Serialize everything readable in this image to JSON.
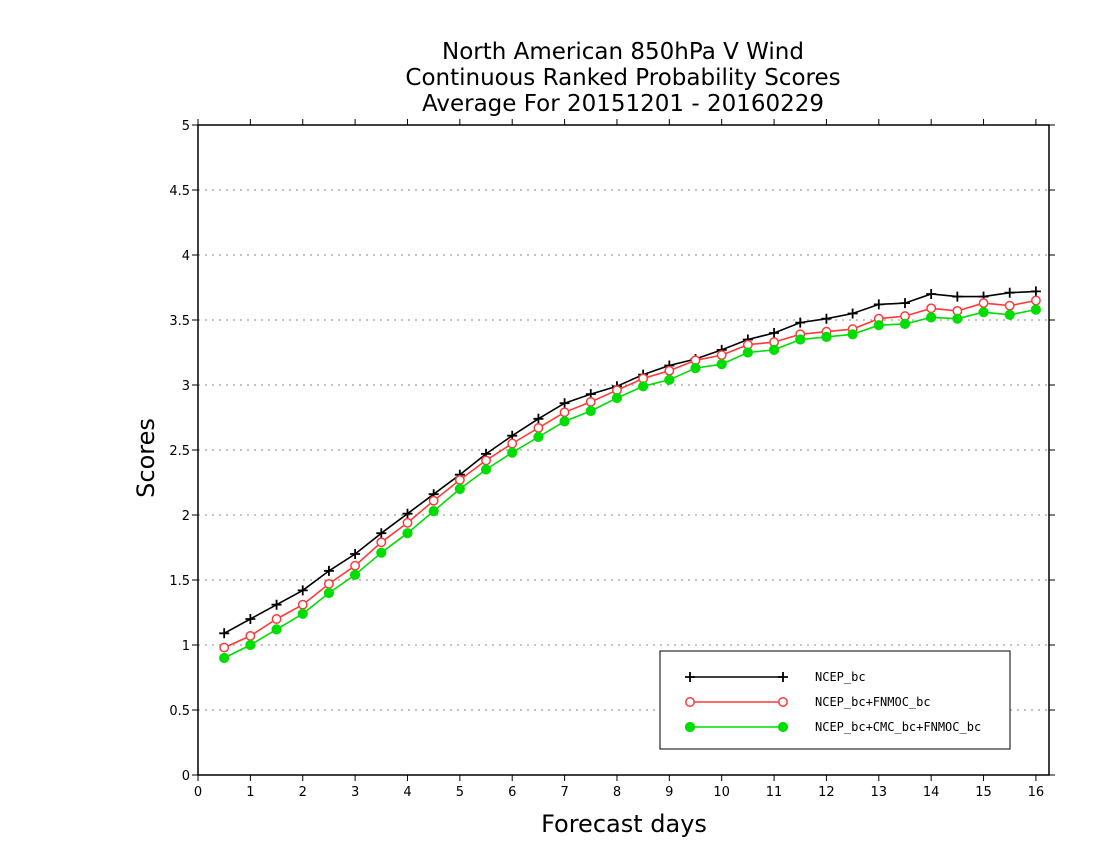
{
  "chart_data": {
    "type": "line",
    "title": [
      "North American 850hPa V Wind",
      "Continuous Ranked Probability Scores",
      "Average For 20151201 - 20160229"
    ],
    "xlabel": "Forecast days",
    "ylabel": "Scores",
    "xlim": [
      0,
      16.25
    ],
    "ylim": [
      0,
      5
    ],
    "x_ticks": [
      0,
      1,
      2,
      3,
      4,
      5,
      6,
      7,
      8,
      9,
      10,
      11,
      12,
      13,
      14,
      15,
      16
    ],
    "x_tick_labels": [
      "0",
      "1",
      "2",
      "3",
      "4",
      "5",
      "6",
      "7",
      "8",
      "9",
      "10",
      "11",
      "12",
      "13",
      "14",
      "15",
      "16"
    ],
    "y_ticks": [
      0,
      0.5,
      1,
      1.5,
      2,
      2.5,
      3,
      3.5,
      4,
      4.5,
      5
    ],
    "y_tick_labels": [
      "0",
      "0.5",
      "1",
      "1.5",
      "2",
      "2.5",
      "3",
      "3.5",
      "4",
      "4.5",
      "5"
    ],
    "grid": "horizontal dotted",
    "legend_position": "bottom-right",
    "x": [
      0.5,
      1,
      1.5,
      2,
      2.5,
      3,
      3.5,
      4,
      4.5,
      5,
      5.5,
      6,
      6.5,
      7,
      7.5,
      8,
      8.5,
      9,
      9.5,
      10,
      10.5,
      11,
      11.5,
      12,
      12.5,
      13,
      13.5,
      14,
      14.5,
      15,
      15.5,
      16
    ],
    "series": [
      {
        "name": "NCEP_bc",
        "color": "#000000",
        "marker": "plus",
        "values": [
          1.09,
          1.2,
          1.31,
          1.42,
          1.57,
          1.7,
          1.86,
          2.01,
          2.16,
          2.31,
          2.47,
          2.61,
          2.74,
          2.86,
          2.93,
          2.99,
          3.08,
          3.15,
          3.2,
          3.27,
          3.35,
          3.4,
          3.48,
          3.51,
          3.55,
          3.62,
          3.63,
          3.7,
          3.68,
          3.68,
          3.71,
          3.72
        ]
      },
      {
        "name": "NCEP_bc+FNMOC_bc",
        "color": "#ff3a3a",
        "marker": "open-circle",
        "values": [
          0.98,
          1.07,
          1.2,
          1.31,
          1.47,
          1.61,
          1.79,
          1.94,
          2.11,
          2.27,
          2.42,
          2.55,
          2.67,
          2.79,
          2.87,
          2.96,
          3.05,
          3.11,
          3.19,
          3.23,
          3.31,
          3.33,
          3.39,
          3.41,
          3.43,
          3.51,
          3.53,
          3.59,
          3.57,
          3.63,
          3.61,
          3.65
        ]
      },
      {
        "name": "NCEP_bc+CMC_bc+FNMOC_bc",
        "color": "#00dd00",
        "marker": "filled-circle",
        "values": [
          0.9,
          1.0,
          1.12,
          1.24,
          1.4,
          1.54,
          1.71,
          1.86,
          2.03,
          2.2,
          2.35,
          2.48,
          2.6,
          2.72,
          2.8,
          2.9,
          2.99,
          3.04,
          3.13,
          3.16,
          3.25,
          3.27,
          3.35,
          3.37,
          3.39,
          3.46,
          3.47,
          3.52,
          3.51,
          3.56,
          3.54,
          3.58
        ]
      }
    ]
  }
}
